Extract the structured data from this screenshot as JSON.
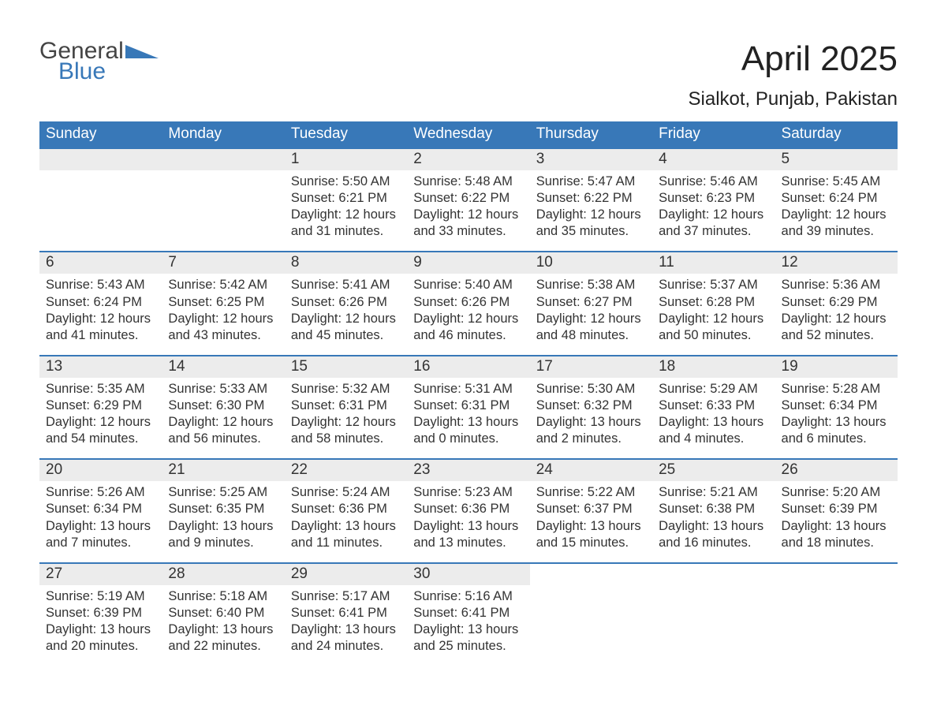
{
  "branding": {
    "logo_text1": "General",
    "logo_text2": "Blue",
    "logo_color_gray": "#444444",
    "logo_color_blue": "#3878b8"
  },
  "header": {
    "title": "April 2025",
    "location": "Sialkot, Punjab, Pakistan"
  },
  "colors": {
    "header_bg": "#3878b8",
    "header_text": "#ffffff",
    "daynum_bg": "#ececec",
    "week_border": "#3878b8",
    "body_text": "#333333",
    "page_bg": "#ffffff"
  },
  "fonts": {
    "title_size_pt": 33,
    "subtitle_size_pt": 18,
    "dow_size_pt": 14,
    "daynum_size_pt": 14,
    "body_size_pt": 12
  },
  "labels": {
    "sunrise": "Sunrise:",
    "sunset": "Sunset:",
    "daylight": "Daylight:"
  },
  "days_of_week": [
    "Sunday",
    "Monday",
    "Tuesday",
    "Wednesday",
    "Thursday",
    "Friday",
    "Saturday"
  ],
  "weeks": [
    [
      {
        "n": "",
        "empty": true
      },
      {
        "n": "",
        "empty": true
      },
      {
        "n": "1",
        "sunrise": "5:50 AM",
        "sunset": "6:21 PM",
        "dl1": "12 hours",
        "dl2": "and 31 minutes."
      },
      {
        "n": "2",
        "sunrise": "5:48 AM",
        "sunset": "6:22 PM",
        "dl1": "12 hours",
        "dl2": "and 33 minutes."
      },
      {
        "n": "3",
        "sunrise": "5:47 AM",
        "sunset": "6:22 PM",
        "dl1": "12 hours",
        "dl2": "and 35 minutes."
      },
      {
        "n": "4",
        "sunrise": "5:46 AM",
        "sunset": "6:23 PM",
        "dl1": "12 hours",
        "dl2": "and 37 minutes."
      },
      {
        "n": "5",
        "sunrise": "5:45 AM",
        "sunset": "6:24 PM",
        "dl1": "12 hours",
        "dl2": "and 39 minutes."
      }
    ],
    [
      {
        "n": "6",
        "sunrise": "5:43 AM",
        "sunset": "6:24 PM",
        "dl1": "12 hours",
        "dl2": "and 41 minutes."
      },
      {
        "n": "7",
        "sunrise": "5:42 AM",
        "sunset": "6:25 PM",
        "dl1": "12 hours",
        "dl2": "and 43 minutes."
      },
      {
        "n": "8",
        "sunrise": "5:41 AM",
        "sunset": "6:26 PM",
        "dl1": "12 hours",
        "dl2": "and 45 minutes."
      },
      {
        "n": "9",
        "sunrise": "5:40 AM",
        "sunset": "6:26 PM",
        "dl1": "12 hours",
        "dl2": "and 46 minutes."
      },
      {
        "n": "10",
        "sunrise": "5:38 AM",
        "sunset": "6:27 PM",
        "dl1": "12 hours",
        "dl2": "and 48 minutes."
      },
      {
        "n": "11",
        "sunrise": "5:37 AM",
        "sunset": "6:28 PM",
        "dl1": "12 hours",
        "dl2": "and 50 minutes."
      },
      {
        "n": "12",
        "sunrise": "5:36 AM",
        "sunset": "6:29 PM",
        "dl1": "12 hours",
        "dl2": "and 52 minutes."
      }
    ],
    [
      {
        "n": "13",
        "sunrise": "5:35 AM",
        "sunset": "6:29 PM",
        "dl1": "12 hours",
        "dl2": "and 54 minutes."
      },
      {
        "n": "14",
        "sunrise": "5:33 AM",
        "sunset": "6:30 PM",
        "dl1": "12 hours",
        "dl2": "and 56 minutes."
      },
      {
        "n": "15",
        "sunrise": "5:32 AM",
        "sunset": "6:31 PM",
        "dl1": "12 hours",
        "dl2": "and 58 minutes."
      },
      {
        "n": "16",
        "sunrise": "5:31 AM",
        "sunset": "6:31 PM",
        "dl1": "13 hours",
        "dl2": "and 0 minutes."
      },
      {
        "n": "17",
        "sunrise": "5:30 AM",
        "sunset": "6:32 PM",
        "dl1": "13 hours",
        "dl2": "and 2 minutes."
      },
      {
        "n": "18",
        "sunrise": "5:29 AM",
        "sunset": "6:33 PM",
        "dl1": "13 hours",
        "dl2": "and 4 minutes."
      },
      {
        "n": "19",
        "sunrise": "5:28 AM",
        "sunset": "6:34 PM",
        "dl1": "13 hours",
        "dl2": "and 6 minutes."
      }
    ],
    [
      {
        "n": "20",
        "sunrise": "5:26 AM",
        "sunset": "6:34 PM",
        "dl1": "13 hours",
        "dl2": "and 7 minutes."
      },
      {
        "n": "21",
        "sunrise": "5:25 AM",
        "sunset": "6:35 PM",
        "dl1": "13 hours",
        "dl2": "and 9 minutes."
      },
      {
        "n": "22",
        "sunrise": "5:24 AM",
        "sunset": "6:36 PM",
        "dl1": "13 hours",
        "dl2": "and 11 minutes."
      },
      {
        "n": "23",
        "sunrise": "5:23 AM",
        "sunset": "6:36 PM",
        "dl1": "13 hours",
        "dl2": "and 13 minutes."
      },
      {
        "n": "24",
        "sunrise": "5:22 AM",
        "sunset": "6:37 PM",
        "dl1": "13 hours",
        "dl2": "and 15 minutes."
      },
      {
        "n": "25",
        "sunrise": "5:21 AM",
        "sunset": "6:38 PM",
        "dl1": "13 hours",
        "dl2": "and 16 minutes."
      },
      {
        "n": "26",
        "sunrise": "5:20 AM",
        "sunset": "6:39 PM",
        "dl1": "13 hours",
        "dl2": "and 18 minutes."
      }
    ],
    [
      {
        "n": "27",
        "sunrise": "5:19 AM",
        "sunset": "6:39 PM",
        "dl1": "13 hours",
        "dl2": "and 20 minutes."
      },
      {
        "n": "28",
        "sunrise": "5:18 AM",
        "sunset": "6:40 PM",
        "dl1": "13 hours",
        "dl2": "and 22 minutes."
      },
      {
        "n": "29",
        "sunrise": "5:17 AM",
        "sunset": "6:41 PM",
        "dl1": "13 hours",
        "dl2": "and 24 minutes."
      },
      {
        "n": "30",
        "sunrise": "5:16 AM",
        "sunset": "6:41 PM",
        "dl1": "13 hours",
        "dl2": "and 25 minutes."
      },
      {
        "n": "",
        "empty": true,
        "noshade": true
      },
      {
        "n": "",
        "empty": true,
        "noshade": true
      },
      {
        "n": "",
        "empty": true,
        "noshade": true
      }
    ]
  ]
}
